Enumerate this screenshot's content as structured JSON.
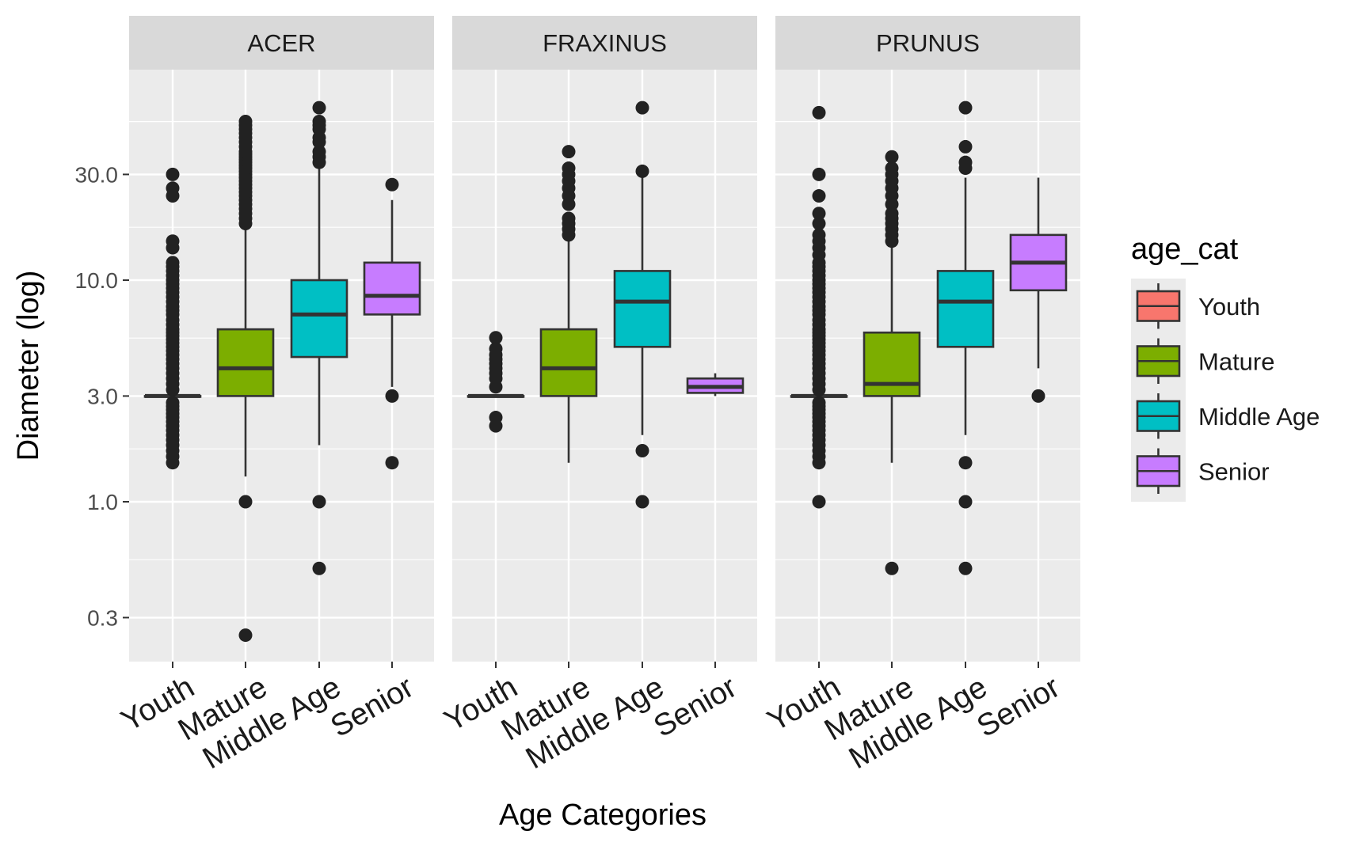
{
  "chart_data": {
    "type": "boxplot",
    "facets": [
      "ACER",
      "FRAXINUS",
      "PRUNUS"
    ],
    "categories": [
      "Youth",
      "Mature",
      "Middle Age",
      "Senior"
    ],
    "xlabel": "Age Categories",
    "ylabel": "Diameter (log)",
    "yscale": "log10",
    "ylim": [
      0.22,
      80
    ],
    "yticks": [
      0.3,
      1.0,
      3.0,
      10.0,
      30.0
    ],
    "ytick_labels": [
      "0.3",
      "1.0",
      "3.0",
      "10.0",
      "30.0"
    ],
    "grid": true,
    "legend": {
      "title": "age_cat",
      "position": "right",
      "items": [
        "Youth",
        "Mature",
        "Middle Age",
        "Senior"
      ]
    },
    "colors": {
      "Youth": "#F8766D",
      "Mature": "#7CAE00",
      "Middle Age": "#00BFC4",
      "Senior": "#C77CFF"
    },
    "series": [
      {
        "facet": "ACER",
        "boxes": [
          {
            "category": "Youth",
            "lower_whisker": 3.0,
            "q1": 3.0,
            "median": 3.0,
            "q3": 3.0,
            "upper_whisker": 3.0,
            "outliers": [
              1.5,
              1.6,
              1.7,
              1.8,
              1.9,
              2.0,
              2.1,
              2.2,
              2.3,
              2.4,
              2.5,
              2.6,
              2.7,
              2.8,
              3.2,
              3.4,
              3.6,
              3.8,
              4.0,
              4.2,
              4.4,
              4.6,
              4.8,
              5.0,
              5.2,
              5.4,
              5.6,
              5.8,
              6.0,
              6.3,
              6.6,
              7.0,
              7.3,
              7.6,
              8.0,
              8.4,
              8.8,
              9.2,
              9.6,
              10.0,
              10.5,
              11.0,
              11.5,
              12.0,
              14.0,
              15.0,
              24.0,
              26.0,
              30.0
            ]
          },
          {
            "category": "Mature",
            "lower_whisker": 1.3,
            "q1": 3.0,
            "median": 4.0,
            "q3": 6.0,
            "upper_whisker": 17.0,
            "outliers": [
              0.25,
              1.0,
              18.0,
              19.0,
              20.0,
              21.0,
              22.0,
              23.0,
              24.0,
              25.0,
              26.0,
              27.0,
              28.0,
              29.0,
              30.0,
              31.0,
              32.0,
              33.0,
              34.0,
              35.0,
              36.0,
              37.0,
              38.0,
              40.0,
              42.0,
              44.0,
              46.0,
              48.0,
              50.0,
              52.0
            ]
          },
          {
            "category": "Middle Age",
            "lower_whisker": 1.8,
            "q1": 4.5,
            "median": 7.0,
            "q3": 10.0,
            "upper_whisker": 32.0,
            "outliers": [
              0.5,
              1.0,
              34.0,
              36.0,
              38.0,
              42.0,
              44.0,
              48.0,
              50.0,
              52.0,
              60.0
            ]
          },
          {
            "category": "Senior",
            "lower_whisker": 3.3,
            "q1": 7.0,
            "median": 8.5,
            "q3": 12.0,
            "upper_whisker": 23.0,
            "outliers": [
              1.5,
              3.0,
              27.0
            ]
          }
        ]
      },
      {
        "facet": "FRAXINUS",
        "boxes": [
          {
            "category": "Youth",
            "lower_whisker": 3.0,
            "q1": 3.0,
            "median": 3.0,
            "q3": 3.0,
            "upper_whisker": 3.0,
            "outliers": [
              2.2,
              2.4,
              3.3,
              3.6,
              3.8,
              4.0,
              4.2,
              4.4,
              4.6,
              4.9,
              5.5
            ]
          },
          {
            "category": "Mature",
            "lower_whisker": 1.5,
            "q1": 3.0,
            "median": 4.0,
            "q3": 6.0,
            "upper_whisker": 16.0,
            "outliers": [
              16.0,
              17.0,
              18.0,
              19.0,
              22.0,
              24.0,
              26.0,
              28.0,
              30.0,
              32.0,
              38.0
            ]
          },
          {
            "category": "Middle Age",
            "lower_whisker": 2.0,
            "q1": 5.0,
            "median": 8.0,
            "q3": 11.0,
            "upper_whisker": 30.0,
            "outliers": [
              1.0,
              1.7,
              31.0,
              60.0
            ]
          },
          {
            "category": "Senior",
            "lower_whisker": 3.0,
            "q1": 3.1,
            "median": 3.3,
            "q3": 3.6,
            "upper_whisker": 3.8,
            "outliers": []
          }
        ]
      },
      {
        "facet": "PRUNUS",
        "boxes": [
          {
            "category": "Youth",
            "lower_whisker": 3.0,
            "q1": 3.0,
            "median": 3.0,
            "q3": 3.0,
            "upper_whisker": 3.0,
            "outliers": [
              1.0,
              1.5,
              1.6,
              1.7,
              1.8,
              1.9,
              2.0,
              2.1,
              2.2,
              2.3,
              2.4,
              2.5,
              2.6,
              2.7,
              2.8,
              3.2,
              3.4,
              3.6,
              3.8,
              4.0,
              4.2,
              4.4,
              4.6,
              4.8,
              5.0,
              5.2,
              5.4,
              5.6,
              5.8,
              6.0,
              6.3,
              6.6,
              7.0,
              7.3,
              7.6,
              8.0,
              8.4,
              8.8,
              9.2,
              9.6,
              10.0,
              10.5,
              11.0,
              11.5,
              12.0,
              13.0,
              14.0,
              15.0,
              16.0,
              18.0,
              20.0,
              24.0,
              30.0,
              57.0
            ]
          },
          {
            "category": "Mature",
            "lower_whisker": 1.5,
            "q1": 3.0,
            "median": 3.4,
            "q3": 5.8,
            "upper_whisker": 15.0,
            "outliers": [
              0.5,
              15.0,
              16.0,
              17.0,
              18.0,
              19.0,
              20.0,
              22.0,
              24.0,
              26.0,
              28.0,
              30.0,
              32.0,
              36.0
            ]
          },
          {
            "category": "Middle Age",
            "lower_whisker": 2.0,
            "q1": 5.0,
            "median": 8.0,
            "q3": 11.0,
            "upper_whisker": 29.0,
            "outliers": [
              0.5,
              1.0,
              1.5,
              32.0,
              34.0,
              40.0,
              60.0
            ]
          },
          {
            "category": "Senior",
            "lower_whisker": 4.0,
            "q1": 9.0,
            "median": 12.0,
            "q3": 16.0,
            "upper_whisker": 29.0,
            "outliers": [
              3.0
            ]
          }
        ]
      }
    ]
  }
}
